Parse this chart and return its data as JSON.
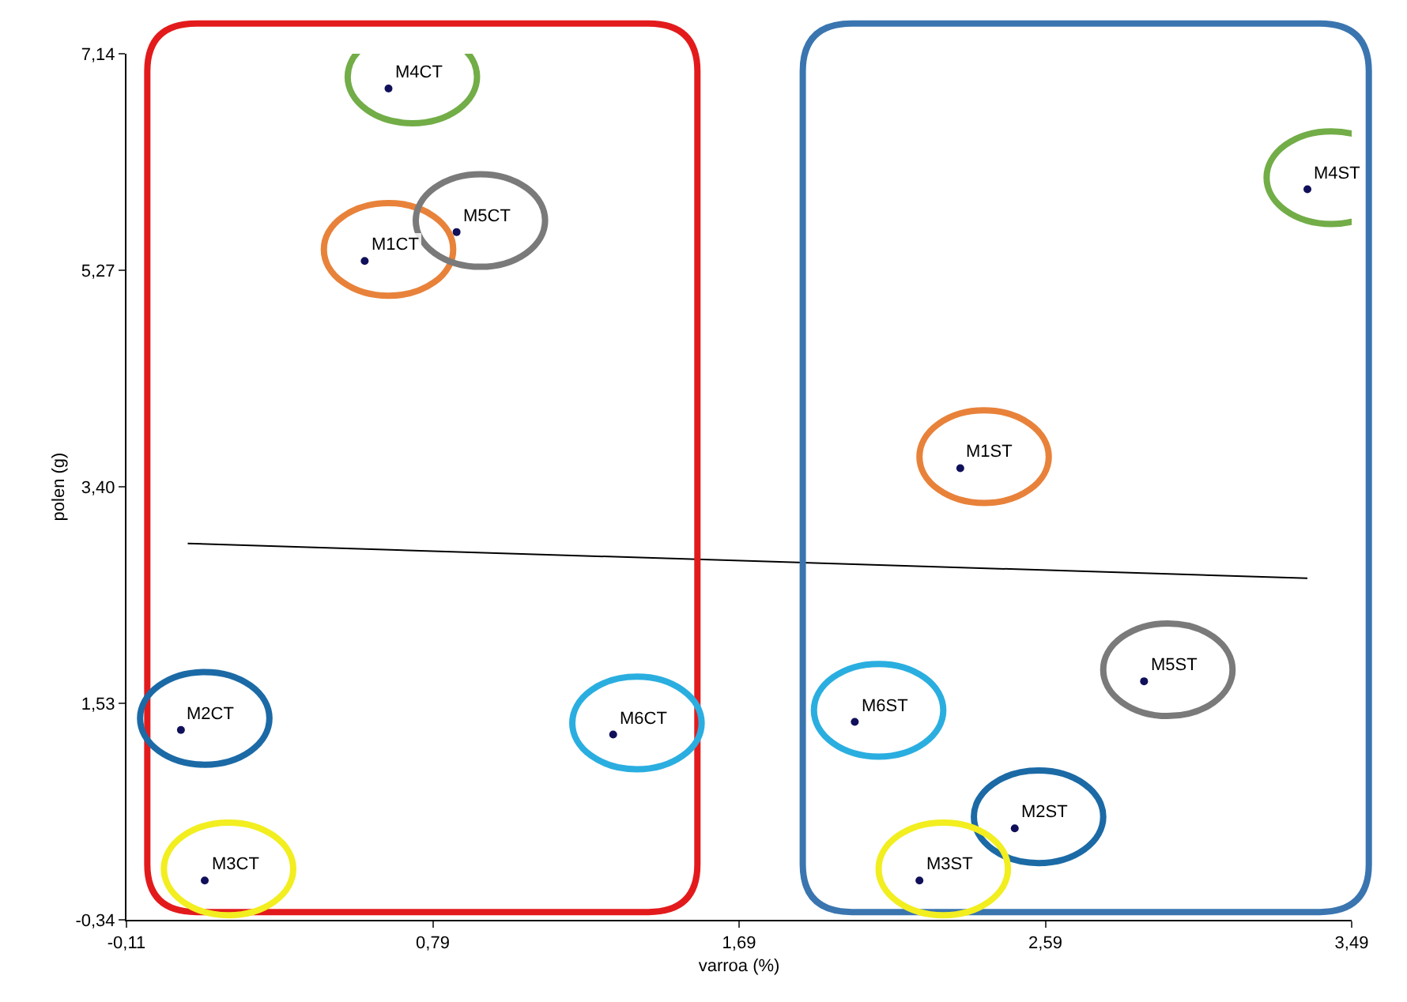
{
  "chart_data": {
    "type": "scatter",
    "xlabel": "varroa (%)",
    "ylabel": "polen (g)",
    "x": [
      0.59,
      0.05,
      0.12,
      0.66,
      0.86,
      1.32,
      2.34,
      2.5,
      2.22,
      3.36,
      2.88,
      2.03
    ],
    "series": [
      {
        "color": "#10105a",
        "marker": "circle",
        "values": [
          5.35,
          1.3,
          0.0,
          6.84,
          5.6,
          1.26,
          3.56,
          0.45,
          0.0,
          5.97,
          1.72,
          1.37
        ]
      },
      {
        "type": "line",
        "color": "#000000",
        "x": [
          0.07,
          3.36
        ],
        "values": [
          2.91,
          2.61
        ]
      }
    ],
    "annotations": [
      {
        "text": "M1CT",
        "x": 0.59,
        "y": 5.35
      },
      {
        "text": "M2CT",
        "x": 0.05,
        "y": 1.3
      },
      {
        "text": "M3CT",
        "x": 0.12,
        "y": 0.0
      },
      {
        "text": "M4CT",
        "x": 0.66,
        "y": 6.84
      },
      {
        "text": "M5CT",
        "x": 0.86,
        "y": 5.6
      },
      {
        "text": "M6CT",
        "x": 1.32,
        "y": 1.26
      },
      {
        "text": "M1ST",
        "x": 2.34,
        "y": 3.56
      },
      {
        "text": "M2ST",
        "x": 2.5,
        "y": 0.45
      },
      {
        "text": "M3ST",
        "x": 2.22,
        "y": 0.0
      },
      {
        "text": "M4ST",
        "x": 3.36,
        "y": 5.97
      },
      {
        "text": "M5ST",
        "x": 2.88,
        "y": 1.72
      },
      {
        "text": "M6ST",
        "x": 2.03,
        "y": 1.37
      }
    ],
    "xlim": [
      -0.11,
      3.49
    ],
    "ylim": [
      -0.34,
      7.14
    ],
    "xticks": [
      {
        "value": -0.11,
        "label": "-0,11"
      },
      {
        "value": 0.79,
        "label": "0,79"
      },
      {
        "value": 1.69,
        "label": "1,69"
      },
      {
        "value": 2.59,
        "label": "2,59"
      },
      {
        "value": 3.49,
        "label": "3,49"
      }
    ],
    "yticks": [
      {
        "value": -0.34,
        "label": "-0,34"
      },
      {
        "value": 1.53,
        "label": "1,53"
      },
      {
        "value": 3.4,
        "label": "3,40"
      },
      {
        "value": 5.27,
        "label": "5,27"
      },
      {
        "value": 7.14,
        "label": "7,14"
      }
    ],
    "tick_labels": "xy"
  }
}
